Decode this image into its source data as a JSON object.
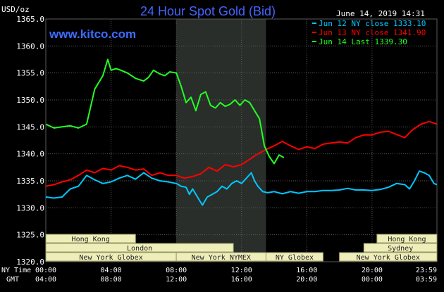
{
  "title": "24 Hour Spot Gold (Bid)",
  "watermark": "www.kitco.com",
  "unit_label": "USD/oz",
  "timestamp": "June 14, 2019 14:31",
  "row_labels": {
    "ny": "NY Time",
    "gmt": "GMT"
  },
  "colors": {
    "background": "#000000",
    "grid": "#5a5a5a",
    "axis_text": "#ffffff",
    "title": "#4466ff",
    "watermark": "#3d6cff",
    "shade": "#2a2e2a",
    "session_fill": "#eeeebb",
    "session_border": "#9a9a66",
    "session_text": "#222222",
    "series": [
      "#00c8ff",
      "#ff0000",
      "#22ff22"
    ]
  },
  "sessions": [
    {
      "label": "Hong Kong",
      "start": -3.0,
      "end": 5.5,
      "row": 0
    },
    {
      "label": "London",
      "start": -3.0,
      "end": 11.5,
      "row": 1
    },
    {
      "label": "New York Globex",
      "start": -3.0,
      "end": 8.0,
      "row": 2
    },
    {
      "label": "New York NYMEX",
      "start": 8.0,
      "end": 13.5,
      "row": 2
    },
    {
      "label": "NY Globex",
      "start": 13.5,
      "end": 17.0,
      "row": 2
    },
    {
      "label": "Hong Kong",
      "start": 20.3,
      "end": 26.0,
      "row": 0
    },
    {
      "label": "Sydney",
      "start": 19.5,
      "end": 26.0,
      "row": 1
    },
    {
      "label": "New York Globex",
      "start": 18.0,
      "end": 26.0,
      "row": 2
    }
  ],
  "chart_data": {
    "type": "line",
    "title": "24 Hour Spot Gold (Bid)",
    "ylabel": "USD/oz",
    "ylim": [
      1320.0,
      1365.0
    ],
    "xlim_hours": [
      0,
      23.98
    ],
    "grid": true,
    "legend_position": "top-right",
    "highlight_hours": [
      8.0,
      13.5
    ],
    "y_ticks": [
      "1320.0",
      "1325.0",
      "1330.0",
      "1335.0",
      "1340.0",
      "1345.0",
      "1350.0",
      "1355.0",
      "1360.0",
      "1365.0"
    ],
    "x_ticks_ny": [
      "00:00",
      "04:00",
      "08:00",
      "12:00",
      "16:00",
      "20:00",
      "23:59"
    ],
    "x_ticks_gmt": [
      "04:00",
      "08:00",
      "12:00",
      "16:00",
      "20:00",
      "00:00",
      "03:59"
    ],
    "series": [
      {
        "name": "Jun 12 NY close 1333.10",
        "x": [
          0,
          0.5,
          1.0,
          1.5,
          2.0,
          2.5,
          3.0,
          3.5,
          4.0,
          4.5,
          5.0,
          5.5,
          6.0,
          6.5,
          7.0,
          7.5,
          8.0,
          8.3,
          8.6,
          8.8,
          9.0,
          9.3,
          9.6,
          9.9,
          10.2,
          10.5,
          10.8,
          11.1,
          11.4,
          11.7,
          12.0,
          12.3,
          12.6,
          12.8,
          13.0,
          13.3,
          13.6,
          14.0,
          14.5,
          15.0,
          15.5,
          16.0,
          16.5,
          17.0,
          17.5,
          18.0,
          18.5,
          19.0,
          19.5,
          20.0,
          20.5,
          21.0,
          21.5,
          22.0,
          22.3,
          22.6,
          22.9,
          23.2,
          23.5,
          23.8,
          23.98
        ],
        "values": [
          1332.0,
          1331.8,
          1332.0,
          1333.5,
          1334.0,
          1336.0,
          1335.2,
          1334.5,
          1334.8,
          1335.5,
          1336.0,
          1335.3,
          1336.5,
          1335.5,
          1335.0,
          1334.8,
          1334.5,
          1334.0,
          1333.8,
          1332.5,
          1333.5,
          1332.0,
          1330.5,
          1332.0,
          1332.5,
          1333.0,
          1334.0,
          1333.5,
          1334.5,
          1335.0,
          1334.5,
          1335.5,
          1336.5,
          1335.0,
          1334.0,
          1333.0,
          1332.8,
          1333.0,
          1332.6,
          1333.0,
          1332.7,
          1333.0,
          1333.0,
          1333.2,
          1333.2,
          1333.3,
          1333.6,
          1333.3,
          1333.3,
          1333.2,
          1333.4,
          1333.8,
          1334.5,
          1334.3,
          1333.5,
          1335.0,
          1336.8,
          1336.5,
          1336.0,
          1334.5,
          1334.3
        ]
      },
      {
        "name": "Jun 13 NY close 1341.90",
        "x": [
          0,
          0.5,
          1.0,
          1.5,
          2.0,
          2.5,
          3.0,
          3.5,
          4.0,
          4.5,
          5.0,
          5.5,
          6.0,
          6.5,
          7.0,
          7.5,
          8.0,
          8.5,
          9.0,
          9.5,
          10.0,
          10.5,
          11.0,
          11.5,
          12.0,
          12.5,
          13.0,
          13.5,
          14.0,
          14.5,
          15.0,
          15.5,
          16.0,
          16.5,
          17.0,
          17.5,
          18.0,
          18.5,
          19.0,
          19.5,
          20.0,
          20.5,
          21.0,
          21.5,
          22.0,
          22.5,
          23.0,
          23.5,
          23.98
        ],
        "values": [
          1334.0,
          1334.3,
          1334.8,
          1335.2,
          1336.0,
          1337.0,
          1336.5,
          1337.3,
          1337.0,
          1337.8,
          1337.5,
          1337.0,
          1337.2,
          1336.0,
          1336.5,
          1336.0,
          1336.0,
          1335.5,
          1335.8,
          1336.3,
          1337.5,
          1336.8,
          1338.0,
          1337.6,
          1338.0,
          1339.0,
          1340.0,
          1340.8,
          1341.5,
          1342.3,
          1341.5,
          1340.8,
          1341.3,
          1341.0,
          1341.8,
          1342.0,
          1342.2,
          1342.0,
          1343.0,
          1343.5,
          1343.5,
          1344.0,
          1344.2,
          1343.6,
          1343.0,
          1344.5,
          1345.5,
          1346.0,
          1345.5
        ]
      },
      {
        "name": "Jun 14 Last 1339.30",
        "x": [
          0,
          0.5,
          1.0,
          1.5,
          2.0,
          2.5,
          3.0,
          3.5,
          3.8,
          4.0,
          4.3,
          4.6,
          5.0,
          5.5,
          6.0,
          6.3,
          6.6,
          7.0,
          7.3,
          7.6,
          8.0,
          8.3,
          8.6,
          8.9,
          9.2,
          9.5,
          9.8,
          10.1,
          10.4,
          10.7,
          11.0,
          11.3,
          11.6,
          11.9,
          12.2,
          12.5,
          12.8,
          13.1,
          13.4,
          13.7,
          14.0,
          14.3,
          14.6
        ],
        "values": [
          1345.5,
          1344.8,
          1345.0,
          1345.2,
          1344.8,
          1345.5,
          1352.0,
          1354.5,
          1357.5,
          1355.5,
          1355.8,
          1355.5,
          1355.0,
          1354.0,
          1353.5,
          1354.2,
          1355.5,
          1354.8,
          1354.5,
          1355.2,
          1355.0,
          1352.5,
          1349.5,
          1350.5,
          1348.0,
          1351.0,
          1351.5,
          1349.0,
          1348.5,
          1349.5,
          1348.8,
          1349.2,
          1350.0,
          1349.0,
          1350.0,
          1349.5,
          1348.0,
          1346.5,
          1341.5,
          1339.5,
          1338.2,
          1339.8,
          1339.3
        ]
      }
    ]
  }
}
